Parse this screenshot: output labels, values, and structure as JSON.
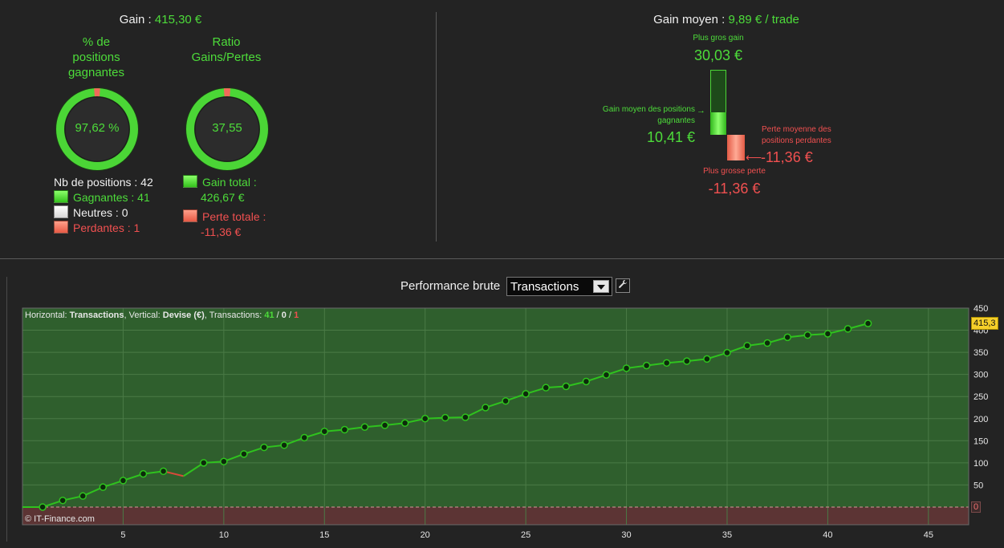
{
  "summary": {
    "gain_label": "Gain : ",
    "gain_value": "415,30 €",
    "pct_title_1": "% de",
    "pct_title_2": "positions",
    "pct_title_3": "gagnantes",
    "pct_value": "97,62 %",
    "ratio_title_1": "Ratio",
    "ratio_title_2": "Gains/Pertes",
    "ratio_value": "37,55",
    "nb_positions": "Nb de positions : 42",
    "gagnantes": "Gagnantes : 41",
    "neutres": "Neutres : 0",
    "perdantes": "Perdantes : 1",
    "gain_total_label": "Gain total :",
    "gain_total_value": "426,67 €",
    "perte_totale_label": "Perte totale :",
    "perte_totale_value": "-11,36 €",
    "pct_gauge_fraction": 0.9762,
    "ratio_gauge_fraction": 0.974
  },
  "average": {
    "title_label": "Gain moyen : ",
    "title_value": "9,89 € / trade",
    "plus_gros_gain_label": "Plus gros gain",
    "plus_gros_gain_value": "30,03 €",
    "gain_moyen_label_1": "Gain moyen des positions",
    "gain_moyen_label_2": "gagnantes",
    "gain_moyen_value": "10,41 €",
    "perte_moyenne_label_1": "Perte moyenne des",
    "perte_moyenne_label_2": "positions perdantes",
    "perte_moyenne_value": "-11,36 €",
    "plus_grosse_perte_label": "Plus grosse perte",
    "plus_grosse_perte_value": "-11,36 €"
  },
  "chart_header": {
    "title": "Performance brute",
    "select_value": "Transactions",
    "settings_icon": "wrench-icon"
  },
  "chart_info": {
    "prefix": "Horizontal: ",
    "horizontal": "Transactions",
    "mid": ", Vertical: ",
    "vertical": "Devise (€)",
    "tx": ", Transactions: ",
    "wins": "41",
    "sep1": " / ",
    "neutral": "0",
    "sep2": " / ",
    "losses": "1",
    "credit": "© IT-Finance.com",
    "last_value_tag": "415,3",
    "zero_tag": "0"
  },
  "colors": {
    "gain": "#4ddc3a",
    "loss": "#f05050",
    "plot_bg": "#2f5f2d",
    "neg_bg": "#5c3434"
  },
  "chart_data": {
    "type": "line",
    "x": [
      0,
      1,
      2,
      3,
      4,
      5,
      6,
      7,
      8,
      9,
      10,
      11,
      12,
      13,
      14,
      15,
      16,
      17,
      18,
      19,
      20,
      21,
      22,
      23,
      24,
      25,
      26,
      27,
      28,
      29,
      30,
      31,
      32,
      33,
      34,
      35,
      36,
      37,
      38,
      39,
      40,
      41,
      42
    ],
    "values": [
      0,
      0,
      15,
      25,
      45,
      60,
      75,
      81,
      70,
      100,
      103,
      120,
      135,
      140,
      157,
      171,
      175,
      181,
      185,
      190,
      200,
      202,
      203,
      225,
      240,
      256,
      270,
      273,
      284,
      299,
      314,
      320,
      326,
      330,
      335,
      349,
      365,
      371,
      384,
      389,
      392,
      403,
      415.3
    ],
    "ylim": [
      -40,
      450
    ],
    "xlim": [
      0,
      47
    ],
    "x_ticks": [
      5,
      10,
      15,
      20,
      25,
      30,
      35,
      40,
      45
    ],
    "y_ticks": [
      0,
      50,
      100,
      150,
      200,
      250,
      300,
      350,
      400,
      450
    ],
    "xlabel": "Transactions",
    "ylabel": "Devise (€)",
    "grid": true
  }
}
